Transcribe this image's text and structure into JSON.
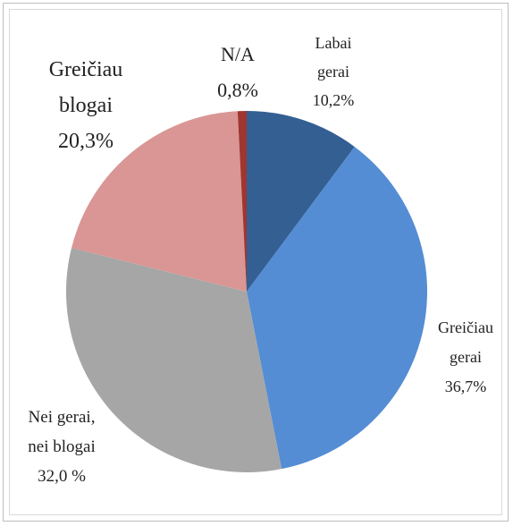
{
  "chart_data": {
    "type": "pie",
    "categories": [
      "Labai gerai",
      "Greičiau gerai",
      "Nei gerai, nei blogai",
      "Greičiau blogai",
      "N/A"
    ],
    "values": [
      10.2,
      36.7,
      32.0,
      20.3,
      0.8
    ],
    "value_labels": [
      "10,2%",
      "36,7%",
      "32,0 %",
      "20,3%",
      "0,8%"
    ],
    "colors": [
      "#335f93",
      "#548dd4",
      "#a6a6a6",
      "#d99694",
      "#a0362f"
    ]
  }
}
